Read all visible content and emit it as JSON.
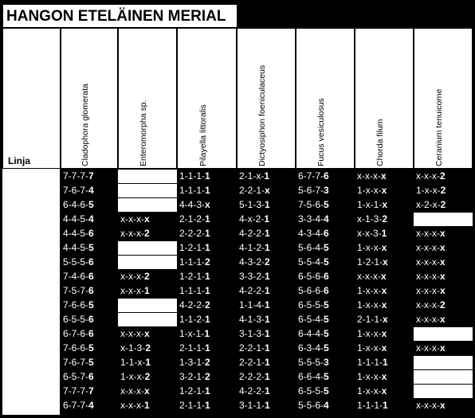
{
  "title": "HANGON ETELÄINEN MERIAL",
  "row_header": "Linja",
  "columns": [
    "Cladophora glomerata",
    "Enteromorpha sp.",
    "Pilayella littoralis",
    "Dictyosiphon foeniculaceus",
    "Fucus vesiculosus",
    "Chorda filum",
    "Ceranium tenuicorne"
  ],
  "rows": [
    [
      "7-7-7-7",
      "",
      "1-1-1-1",
      "2-1-x-1",
      "6-7-7-6",
      "x-x-x-x",
      "x-x-x-2"
    ],
    [
      "7-6-7-4",
      "",
      "1-1-1-1",
      "2-2-1-x",
      "5-6-7-3",
      "1-x-x-x",
      "1-x-x-2"
    ],
    [
      "6-4-6-5",
      "",
      "4-4-3-x",
      "5-1-3-1",
      "7-5-6-5",
      "1-x-1-x",
      "x-2-x-2"
    ],
    [
      "4-4-5-4",
      "x-x-x-x",
      "2-1-2-1",
      "4-x-2-1",
      "3-3-4-4",
      "x-1-3-2",
      ""
    ],
    [
      "4-4-5-6",
      "x-x-x-2",
      "2-2-2-1",
      "4-2-2-1",
      "4-3-4-6",
      "x-x-3-1",
      "x-x-x-x"
    ],
    [
      "4-4-5-5",
      "",
      "1-2-1-1",
      "4-1-2-1",
      "5-6-4-5",
      "1-x-x-x",
      "x-x-x-x"
    ],
    [
      "5-5-5-6",
      "",
      "1-1-1-2",
      "4-3-2-2",
      "5-5-4-5",
      "1-2-1-x",
      "x-x-x-x"
    ],
    [
      "7-4-6-6",
      "x-x-x-2",
      "1-2-1-1",
      "3-3-2-1",
      "6-5-6-6",
      "x-x-x-x",
      "x-x-x-x"
    ],
    [
      "7-5-7-6",
      "x-x-x-1",
      "1-1-1-1",
      "4-2-2-1",
      "5-6-6-6",
      "1-x-x-x",
      "x-x-x-x"
    ],
    [
      "7-6-6-5",
      "",
      "4-2-2-2",
      "1-1-4-1",
      "6-5-5-5",
      "1-x-x-x",
      "x-x-x-2"
    ],
    [
      "6-5-5-6",
      "",
      "1-1-2-1",
      "4-1-3-1",
      "6-5-4-5",
      "2-1-1-x",
      "x-x-x-x"
    ],
    [
      "6-7-6-6",
      "x-x-x-x",
      "1-x-1-1",
      "3-1-3-1",
      "6-4-4-5",
      "1-x-x-x",
      ""
    ],
    [
      "7-6-6-5",
      "x-1-3-2",
      "2-1-1-1",
      "2-2-1-1",
      "6-3-4-5",
      "1-x-x-x",
      "x-x-x-x"
    ],
    [
      "7-6-7-5",
      "1-1-x-1",
      "1-3-1-2",
      "2-2-1-1",
      "5-5-5-3",
      "1-1-1-1",
      ""
    ],
    [
      "6-5-7-6",
      "1-x-x-2",
      "3-2-1-2",
      "2-2-2-1",
      "6-6-4-5",
      "1-x-x-x",
      ""
    ],
    [
      "7-7-7-7",
      "x-x-x-x",
      "1-2-1-1",
      "4-2-2-1",
      "6-5-5-5",
      "1-x-x-x",
      ""
    ],
    [
      "6-7-7-4",
      "x-x-x-1",
      "2-1-1-1",
      "3-1-1-1",
      "5-5-6-4",
      "1-1-1-1",
      "x-x-x-x"
    ]
  ]
}
